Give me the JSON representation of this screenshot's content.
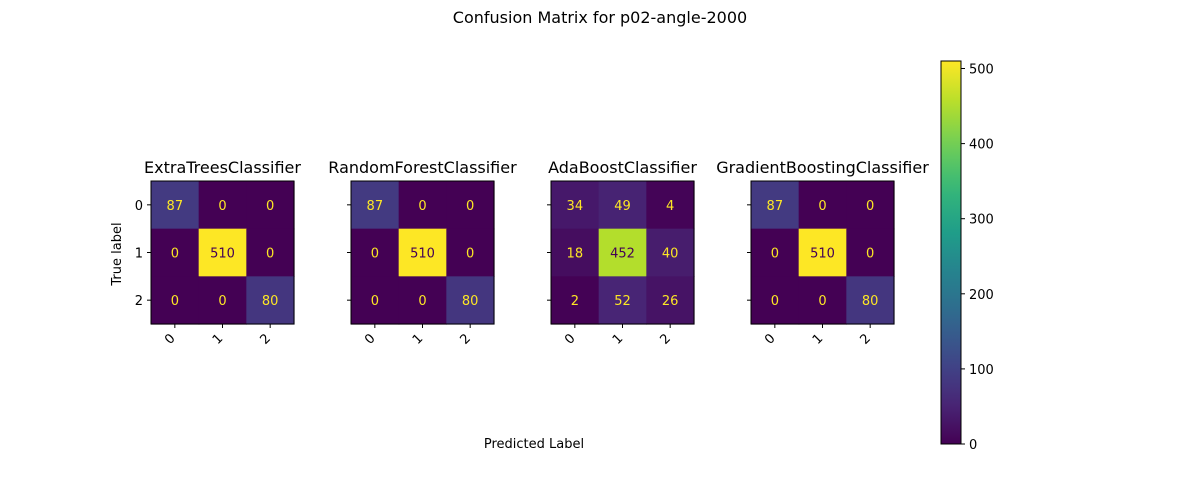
{
  "figure": {
    "title": "Confusion Matrix for p02-angle-2000",
    "xlabel": "Predicted Label",
    "ylabel": "True label"
  },
  "chart_data": {
    "type": "heatmap",
    "title": "Confusion Matrix for p02-angle-2000",
    "xlabel": "Predicted Label",
    "ylabel": "True label",
    "colormap": "viridis",
    "color_range": [
      0,
      510
    ],
    "colorbar_ticks": [
      0,
      100,
      200,
      300,
      400,
      500
    ],
    "class_labels": [
      "0",
      "1",
      "2"
    ],
    "panels": [
      {
        "title": "ExtraTreesClassifier",
        "matrix": [
          [
            87,
            0,
            0
          ],
          [
            0,
            510,
            0
          ],
          [
            0,
            0,
            80
          ]
        ]
      },
      {
        "title": "RandomForestClassifier",
        "matrix": [
          [
            87,
            0,
            0
          ],
          [
            0,
            510,
            0
          ],
          [
            0,
            0,
            80
          ]
        ]
      },
      {
        "title": "AdaBoostClassifier",
        "matrix": [
          [
            34,
            49,
            4
          ],
          [
            18,
            452,
            40
          ],
          [
            2,
            52,
            26
          ]
        ]
      },
      {
        "title": "GradientBoostingClassifier",
        "matrix": [
          [
            87,
            0,
            0
          ],
          [
            0,
            510,
            0
          ],
          [
            0,
            0,
            80
          ]
        ]
      }
    ]
  }
}
